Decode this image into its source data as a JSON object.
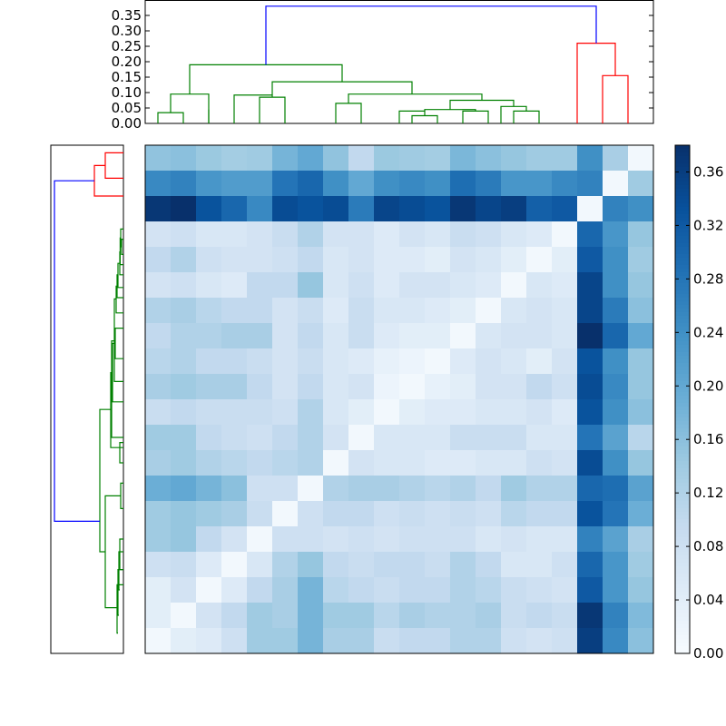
{
  "chart_data": [
    {
      "type": "dendrogram",
      "orientation": "top",
      "ylim": [
        0,
        0.4
      ],
      "ytick_labels": [
        "0.00",
        "0.05",
        "0.10",
        "0.15",
        "0.20",
        "0.25",
        "0.30",
        "0.35"
      ],
      "leaves": 20,
      "links": [
        {
          "x": [
            0.5,
            0.5,
            1.5,
            1.5
          ],
          "y": [
            0.0,
            0.035,
            0.035,
            0.0
          ],
          "color": "#008000"
        },
        {
          "x": [
            1.0,
            1.0,
            2.5,
            2.5
          ],
          "y": [
            0.035,
            0.095,
            0.095,
            0.0
          ],
          "color": "#008000"
        },
        {
          "x": [
            2.5,
            2.5,
            2.5,
            2.5
          ],
          "y": [
            0.0,
            0.045,
            0.045,
            0.0
          ],
          "color": "#008000"
        },
        {
          "x": [
            4.5,
            4.5,
            5.5,
            5.5
          ],
          "y": [
            0.0,
            0.085,
            0.085,
            0.0
          ],
          "color": "#008000"
        },
        {
          "x": [
            3.5,
            3.5,
            5.0,
            5.0
          ],
          "y": [
            0.0,
            0.092,
            0.092,
            0.085
          ],
          "color": "#008000"
        },
        {
          "x": [
            7.5,
            7.5,
            8.5,
            8.5
          ],
          "y": [
            0.0,
            0.065,
            0.065,
            0.0
          ],
          "color": "#008000"
        },
        {
          "x": [
            10.5,
            10.5,
            11.5,
            11.5
          ],
          "y": [
            0.0,
            0.025,
            0.025,
            0.0
          ],
          "color": "#008000"
        },
        {
          "x": [
            10.0,
            10.0,
            11.0,
            11.0
          ],
          "y": [
            0.0,
            0.04,
            0.04,
            0.025
          ],
          "color": "#008000"
        },
        {
          "x": [
            12.5,
            12.5,
            13.5,
            13.5
          ],
          "y": [
            0.0,
            0.04,
            0.04,
            0.0
          ],
          "color": "#008000"
        },
        {
          "x": [
            11.0,
            11.0,
            13.0,
            13.0
          ],
          "y": [
            0.04,
            0.045,
            0.045,
            0.04
          ],
          "color": "#008000"
        },
        {
          "x": [
            14.5,
            14.5,
            15.5,
            15.5
          ],
          "y": [
            0.0,
            0.04,
            0.04,
            0.0
          ],
          "color": "#008000"
        },
        {
          "x": [
            14.0,
            14.0,
            15.0,
            15.0
          ],
          "y": [
            0.0,
            0.055,
            0.055,
            0.04
          ],
          "color": "#008000"
        },
        {
          "x": [
            12.0,
            12.0,
            14.5,
            14.5
          ],
          "y": [
            0.045,
            0.075,
            0.075,
            0.055
          ],
          "color": "#008000"
        },
        {
          "x": [
            8.0,
            8.0,
            13.25,
            13.25
          ],
          "y": [
            0.065,
            0.095,
            0.095,
            0.075
          ],
          "color": "#008000"
        },
        {
          "x": [
            5.0,
            5.0,
            10.5,
            10.5
          ],
          "y": [
            0.092,
            0.135,
            0.135,
            0.095
          ],
          "color": "#008000"
        },
        {
          "x": [
            1.75,
            1.75,
            7.75,
            7.75
          ],
          "y": [
            0.095,
            0.19,
            0.19,
            0.135
          ],
          "color": "#008000"
        },
        {
          "x": [
            18.0,
            18.0,
            19.0,
            19.0
          ],
          "y": [
            0.0,
            0.155,
            0.155,
            0.0
          ],
          "color": "#ff0000"
        },
        {
          "x": [
            17.0,
            17.0,
            18.5,
            18.5
          ],
          "y": [
            0.0,
            0.26,
            0.26,
            0.155
          ],
          "color": "#ff0000"
        },
        {
          "x": [
            4.75,
            4.75,
            17.75,
            17.75
          ],
          "y": [
            0.19,
            0.38,
            0.38,
            0.26
          ],
          "color": "#0000ff"
        }
      ]
    },
    {
      "type": "dendrogram",
      "orientation": "left",
      "leaves": 20,
      "links": [
        {
          "x": [
            0.0,
            0.1,
            0.1,
            0.0
          ],
          "y": [
            0.3,
            0.3,
            1.3,
            1.3
          ],
          "color": "#ff0000"
        },
        {
          "x": [
            0.0,
            0.16,
            0.16,
            0.1
          ],
          "y": [
            2.0,
            2.0,
            0.8,
            0.8
          ],
          "color": "#ff0000"
        },
        {
          "x": [
            0.0,
            0.01,
            0.01,
            0.0
          ],
          "y": [
            3.7,
            3.7,
            4.3,
            4.3
          ],
          "color": "#008000"
        },
        {
          "x": [
            0.0,
            0.015,
            0.015,
            0.01
          ],
          "y": [
            3.3,
            3.3,
            4.0,
            4.0
          ],
          "color": "#008000"
        },
        {
          "x": [
            0.0,
            0.018,
            0.018,
            0.015
          ],
          "y": [
            4.7,
            4.7,
            3.65,
            3.65
          ],
          "color": "#008000"
        },
        {
          "x": [
            0.0,
            0.02,
            0.02,
            0.018
          ],
          "y": [
            5.1,
            5.1,
            4.2,
            4.2
          ],
          "color": "#008000"
        },
        {
          "x": [
            0.0,
            0.03,
            0.03,
            0.02
          ],
          "y": [
            5.6,
            5.6,
            4.65,
            4.65
          ],
          "color": "#008000"
        },
        {
          "x": [
            0.0,
            0.035,
            0.035,
            0.03
          ],
          "y": [
            6.0,
            6.0,
            5.1,
            5.1
          ],
          "color": "#008000"
        },
        {
          "x": [
            0.0,
            0.04,
            0.04,
            0.035
          ],
          "y": [
            6.6,
            6.6,
            5.55,
            5.55
          ],
          "color": "#008000"
        },
        {
          "x": [
            0.0,
            0.045,
            0.045,
            0.0
          ],
          "y": [
            7.2,
            7.2,
            8.4,
            8.4
          ],
          "color": "#008000"
        },
        {
          "x": [
            0.0,
            0.05,
            0.05,
            0.04
          ],
          "y": [
            9.3,
            9.3,
            6.05,
            6.05
          ],
          "color": "#008000"
        },
        {
          "x": [
            0.0,
            0.06,
            0.06,
            0.045
          ],
          "y": [
            10.1,
            10.1,
            7.8,
            7.8
          ],
          "color": "#008000"
        },
        {
          "x": [
            0.0,
            0.065,
            0.065,
            0.05
          ],
          "y": [
            11.5,
            11.5,
            7.7,
            7.7
          ],
          "color": "#008000"
        },
        {
          "x": [
            0.0,
            0.02,
            0.02,
            0.0
          ],
          "y": [
            11.7,
            11.7,
            12.5,
            12.5
          ],
          "color": "#008000"
        },
        {
          "x": [
            0.0,
            0.07,
            0.07,
            0.06
          ],
          "y": [
            11.9,
            11.9,
            8.95,
            8.95
          ],
          "color": "#008000"
        },
        {
          "x": [
            0.0,
            0.015,
            0.015,
            0.0
          ],
          "y": [
            13.3,
            13.3,
            14.3,
            14.3
          ],
          "color": "#008000"
        },
        {
          "x": [
            0.0,
            0.02,
            0.02,
            0.0
          ],
          "y": [
            15.5,
            15.5,
            16.7,
            16.7
          ],
          "color": "#008000"
        },
        {
          "x": [
            0.0,
            0.025,
            0.025,
            0.02
          ],
          "y": [
            16.0,
            16.0,
            17.5,
            17.5
          ],
          "color": "#008000"
        },
        {
          "x": [
            0.0,
            0.03,
            0.03,
            0.025
          ],
          "y": [
            16.7,
            16.7,
            18.5,
            18.5
          ],
          "color": "#008000"
        },
        {
          "x": [
            0.0,
            0.035,
            0.035,
            0.03
          ],
          "y": [
            17.3,
            17.3,
            19.2,
            19.2
          ],
          "color": "#008000"
        },
        {
          "x": [
            0.015,
            0.1,
            0.1,
            0.035
          ],
          "y": [
            13.8,
            13.8,
            18.2,
            18.2
          ],
          "color": "#008000"
        },
        {
          "x": [
            0.07,
            0.13,
            0.13,
            0.1
          ],
          "y": [
            10.4,
            10.4,
            16.0,
            16.0
          ],
          "color": "#008000"
        },
        {
          "x": [
            0.16,
            0.38,
            0.38,
            0.13
          ],
          "y": [
            1.4,
            1.4,
            14.8,
            14.8
          ],
          "color": "#0000ff"
        }
      ]
    },
    {
      "type": "heatmap",
      "rows": 20,
      "cols": 20,
      "values": [
        [
          0.155,
          0.16,
          0.145,
          0.135,
          0.14,
          0.18,
          0.2,
          0.155,
          0.1,
          0.145,
          0.14,
          0.135,
          0.175,
          0.16,
          0.15,
          0.14,
          0.14,
          0.24,
          0.13,
          0.01
        ],
        [
          0.25,
          0.26,
          0.23,
          0.22,
          0.22,
          0.28,
          0.3,
          0.24,
          0.2,
          0.24,
          0.25,
          0.24,
          0.29,
          0.27,
          0.23,
          0.23,
          0.25,
          0.26,
          0.01,
          0.14
        ],
        [
          0.37,
          0.38,
          0.33,
          0.3,
          0.25,
          0.34,
          0.33,
          0.34,
          0.27,
          0.35,
          0.34,
          0.33,
          0.37,
          0.35,
          0.36,
          0.31,
          0.32,
          0.01,
          0.26,
          0.24
        ],
        [
          0.07,
          0.08,
          0.06,
          0.06,
          0.07,
          0.09,
          0.12,
          0.07,
          0.07,
          0.05,
          0.07,
          0.06,
          0.09,
          0.08,
          0.06,
          0.05,
          0.01,
          0.3,
          0.23,
          0.15
        ],
        [
          0.1,
          0.12,
          0.08,
          0.07,
          0.07,
          0.08,
          0.1,
          0.06,
          0.07,
          0.05,
          0.05,
          0.04,
          0.07,
          0.06,
          0.04,
          0.01,
          0.04,
          0.32,
          0.24,
          0.14
        ],
        [
          0.07,
          0.08,
          0.06,
          0.05,
          0.1,
          0.1,
          0.15,
          0.06,
          0.08,
          0.05,
          0.07,
          0.07,
          0.06,
          0.05,
          0.01,
          0.06,
          0.05,
          0.35,
          0.24,
          0.15
        ],
        [
          0.12,
          0.13,
          0.11,
          0.1,
          0.1,
          0.07,
          0.09,
          0.05,
          0.09,
          0.06,
          0.06,
          0.05,
          0.04,
          0.01,
          0.06,
          0.07,
          0.06,
          0.35,
          0.27,
          0.16
        ],
        [
          0.1,
          0.12,
          0.12,
          0.13,
          0.13,
          0.07,
          0.1,
          0.06,
          0.09,
          0.05,
          0.04,
          0.04,
          0.01,
          0.06,
          0.07,
          0.07,
          0.06,
          0.38,
          0.3,
          0.2
        ],
        [
          0.11,
          0.12,
          0.1,
          0.1,
          0.09,
          0.07,
          0.09,
          0.06,
          0.05,
          0.03,
          0.02,
          0.01,
          0.05,
          0.07,
          0.06,
          0.04,
          0.07,
          0.33,
          0.24,
          0.15
        ],
        [
          0.13,
          0.14,
          0.13,
          0.13,
          0.1,
          0.07,
          0.1,
          0.06,
          0.07,
          0.02,
          0.01,
          0.03,
          0.04,
          0.07,
          0.07,
          0.1,
          0.08,
          0.34,
          0.25,
          0.15
        ],
        [
          0.09,
          0.1,
          0.09,
          0.09,
          0.09,
          0.08,
          0.12,
          0.06,
          0.04,
          0.01,
          0.04,
          0.05,
          0.05,
          0.06,
          0.06,
          0.07,
          0.05,
          0.33,
          0.24,
          0.16
        ],
        [
          0.14,
          0.14,
          0.1,
          0.09,
          0.08,
          0.1,
          0.12,
          0.07,
          0.01,
          0.06,
          0.06,
          0.06,
          0.09,
          0.09,
          0.09,
          0.06,
          0.06,
          0.28,
          0.21,
          0.11
        ],
        [
          0.13,
          0.14,
          0.12,
          0.11,
          0.1,
          0.11,
          0.12,
          0.01,
          0.07,
          0.06,
          0.06,
          0.05,
          0.05,
          0.06,
          0.06,
          0.08,
          0.07,
          0.34,
          0.24,
          0.15
        ],
        [
          0.19,
          0.2,
          0.18,
          0.16,
          0.08,
          0.08,
          0.01,
          0.12,
          0.13,
          0.13,
          0.12,
          0.11,
          0.12,
          0.1,
          0.14,
          0.12,
          0.12,
          0.3,
          0.29,
          0.21
        ],
        [
          0.14,
          0.15,
          0.14,
          0.13,
          0.09,
          0.01,
          0.08,
          0.1,
          0.1,
          0.08,
          0.09,
          0.08,
          0.09,
          0.08,
          0.11,
          0.1,
          0.1,
          0.33,
          0.28,
          0.19
        ],
        [
          0.14,
          0.15,
          0.1,
          0.07,
          0.01,
          0.08,
          0.08,
          0.07,
          0.08,
          0.07,
          0.08,
          0.08,
          0.08,
          0.06,
          0.07,
          0.06,
          0.06,
          0.26,
          0.21,
          0.13
        ],
        [
          0.08,
          0.09,
          0.05,
          0.01,
          0.06,
          0.12,
          0.15,
          0.1,
          0.09,
          0.1,
          0.1,
          0.09,
          0.12,
          0.1,
          0.06,
          0.06,
          0.08,
          0.3,
          0.23,
          0.14
        ],
        [
          0.04,
          0.07,
          0.01,
          0.05,
          0.1,
          0.13,
          0.18,
          0.11,
          0.1,
          0.09,
          0.1,
          0.1,
          0.12,
          0.11,
          0.09,
          0.08,
          0.07,
          0.32,
          0.23,
          0.15
        ],
        [
          0.04,
          0.01,
          0.07,
          0.1,
          0.14,
          0.13,
          0.18,
          0.14,
          0.14,
          0.11,
          0.13,
          0.12,
          0.12,
          0.13,
          0.09,
          0.1,
          0.09,
          0.37,
          0.26,
          0.17
        ],
        [
          0.01,
          0.04,
          0.05,
          0.08,
          0.14,
          0.14,
          0.18,
          0.13,
          0.13,
          0.09,
          0.1,
          0.1,
          0.12,
          0.12,
          0.08,
          0.07,
          0.08,
          0.36,
          0.25,
          0.16
        ]
      ],
      "colormap": "Blues",
      "vmin": 0,
      "vmax": 0.38,
      "colorbar_ticks": [
        "0.00",
        "0.04",
        "0.08",
        "0.12",
        "0.16",
        "0.20",
        "0.24",
        "0.28",
        "0.32",
        "0.36"
      ]
    }
  ]
}
